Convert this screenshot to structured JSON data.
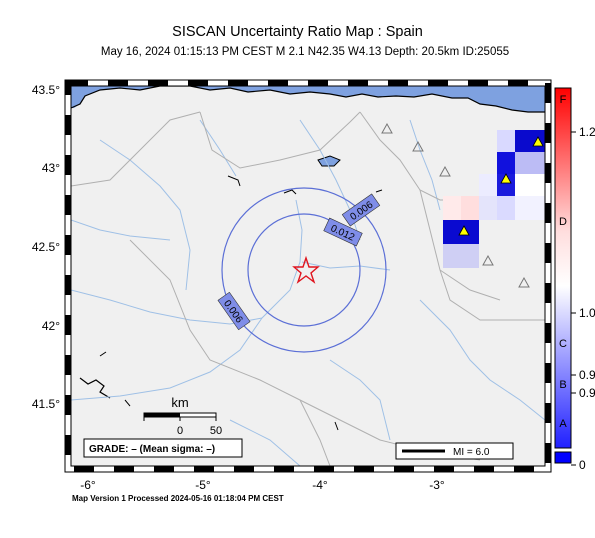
{
  "title": "SISCAN Uncertainty Ratio Map : Spain",
  "subtitle": "May 16, 2024 01:15:13 PM CEST   M 2.1   N42.35 W4.13   Depth: 20.5km   ID:25055",
  "footer": "Map Version 1 Processed 2024-05-16 01:18:04 PM CEST",
  "axes": {
    "lon_ticks": [
      "-6°",
      "-5°",
      "-4°",
      "-3°"
    ],
    "lat_ticks": [
      "43.5°",
      "43°",
      "42.5°",
      "42°",
      "41.5°"
    ],
    "lon_range": [
      -6.15,
      -1.95
    ],
    "lat_range": [
      41.05,
      43.55
    ]
  },
  "contours": [
    {
      "label": "0.006"
    },
    {
      "label": "0.012"
    },
    {
      "label": "0.006"
    }
  ],
  "epicenter": {
    "lon": -4.13,
    "lat": 42.35,
    "color": "#e0141e"
  },
  "scale_bar": {
    "title": "km",
    "labels": [
      "0",
      "50"
    ]
  },
  "grade_box": "GRADE: – (Mean sigma: –)",
  "mi_legend": "MI = 6.0",
  "colorbar": {
    "letters": [
      "F",
      "D",
      "C",
      "B",
      "A"
    ],
    "ticks": [
      "1.2",
      "1.0",
      "0.9",
      "0.9",
      "0"
    ],
    "colors": {
      "top": "#ff0000",
      "mid": "#ffffff",
      "bottom": "#0000ff"
    }
  },
  "colors": {
    "ocean": "#7ea1e0",
    "land": "#f0f0f0",
    "rivers": "#9fc0e6",
    "borders": "#b0b0b0",
    "contour": "#5b6fd6",
    "station": "#ffff00"
  }
}
